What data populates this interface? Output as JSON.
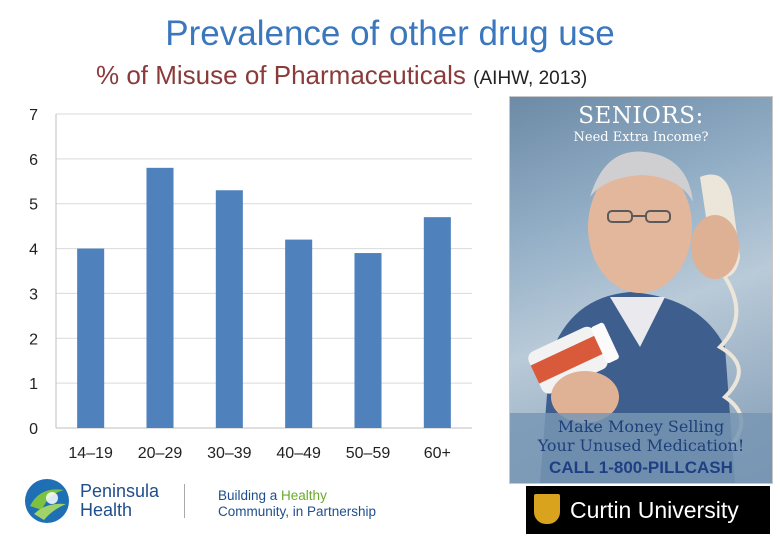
{
  "header": {
    "title": "Prevalence of other drug use",
    "subtitle": "% of Misuse of Pharmaceuticals",
    "source": "(AIHW, 2013)"
  },
  "chart_data": {
    "type": "bar",
    "categories": [
      "14–19",
      "20–29",
      "30–39",
      "40–49",
      "50–59",
      "60+"
    ],
    "values": [
      4.0,
      5.8,
      5.3,
      4.2,
      3.9,
      4.7
    ],
    "yticks": [
      "0",
      "1",
      "2",
      "3",
      "4",
      "5",
      "6",
      "7"
    ],
    "ylim": [
      0,
      7
    ],
    "grid": true,
    "bar_color": "#4f81bd",
    "legend": false
  },
  "ad": {
    "headline": "SENIORS:",
    "subheadline": "Need Extra Income?",
    "line1": "Make Money Selling",
    "line2": "Your Unused Medication!",
    "cta": "CALL 1-800-PILLCASH"
  },
  "logos": {
    "peninsula_line1": "Peninsula",
    "peninsula_line2": "Health",
    "tagline_part1": "Building a ",
    "tagline_highlight": "Healthy",
    "tagline_part2": "Community, in Partnership",
    "curtin": "Curtin University"
  },
  "colors": {
    "title": "#3b77bd",
    "subtitle": "#8b3a3a",
    "brand_green": "#6aaa2c",
    "brand_blue": "#1f4e8c",
    "curtin_gold": "#d9a31d"
  }
}
